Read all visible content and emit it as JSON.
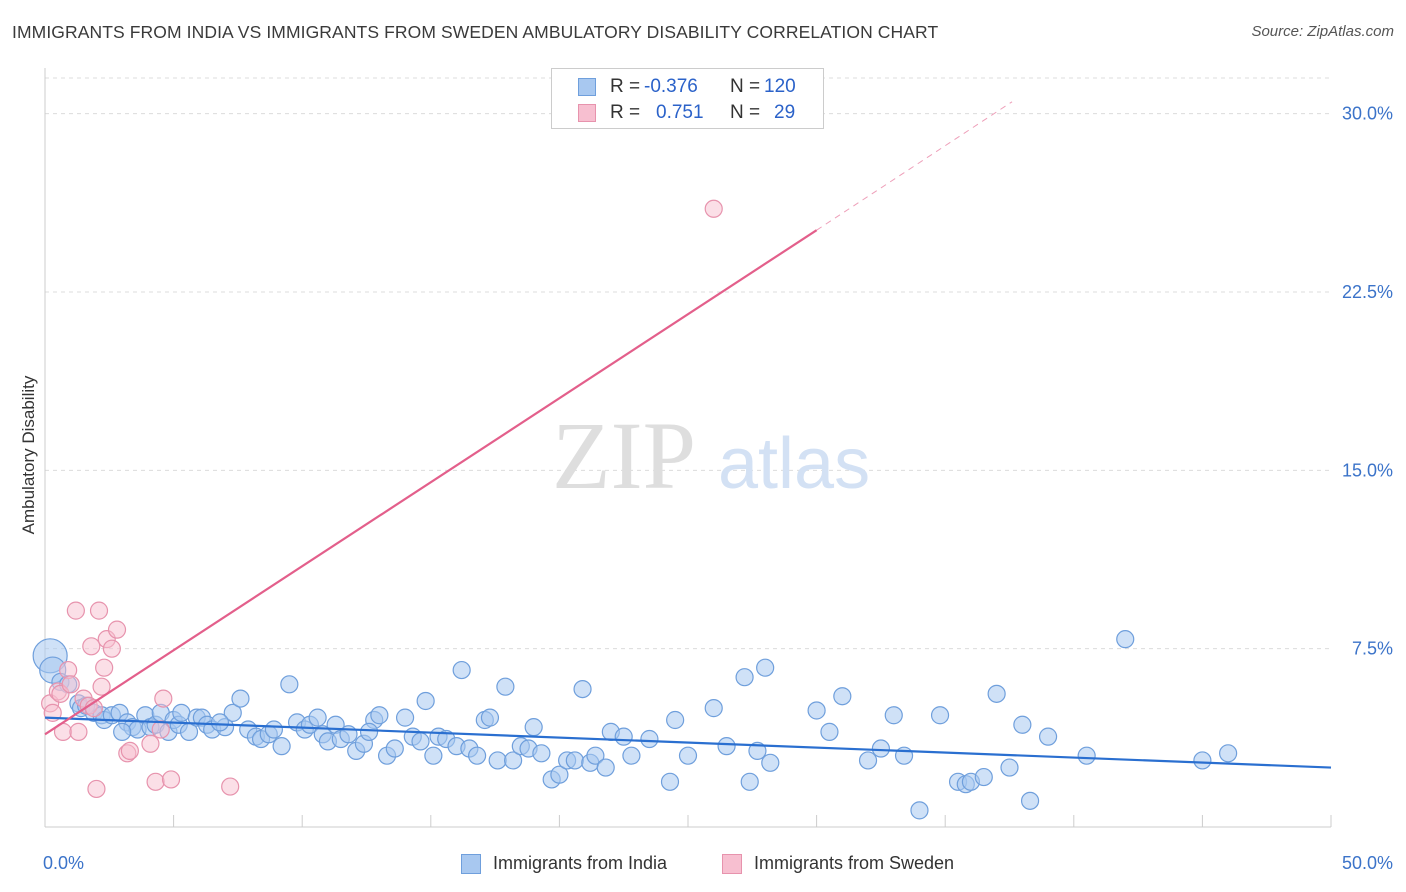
{
  "title": "IMMIGRANTS FROM INDIA VS IMMIGRANTS FROM SWEDEN AMBULATORY DISABILITY CORRELATION CHART",
  "source": "Source: ZipAtlas.com",
  "watermark": {
    "zip": "ZIP",
    "atlas": "atlas"
  },
  "stats": [
    {
      "r_label": "R =",
      "r_value": "-0.376",
      "n_label": "N =",
      "n_value": "120",
      "color": "#a8c8f0",
      "border": "#6f9fdc"
    },
    {
      "r_label": "R =",
      "r_value": "0.751",
      "n_label": "N =",
      "n_value": "29",
      "color": "#f7bfd0",
      "border": "#e793ad"
    }
  ],
  "legend": [
    {
      "label": "Immigrants from India",
      "color": "#a8c8f0",
      "border": "#6f9fdc"
    },
    {
      "label": "Immigrants from Sweden",
      "color": "#f7bfd0",
      "border": "#e793ad"
    }
  ],
  "chart_data": {
    "type": "scatter",
    "title": "IMMIGRANTS FROM INDIA VS IMMIGRANTS FROM SWEDEN AMBULATORY DISABILITY CORRELATION CHART",
    "xlabel": "",
    "ylabel": "Ambulatory Disability",
    "xlim": [
      0,
      50
    ],
    "ylim": [
      0,
      31.5
    ],
    "x_tick_labels": [
      "0.0%",
      "50.0%"
    ],
    "y_ticks": [
      7.5,
      15.0,
      22.5,
      30.0
    ],
    "y_tick_labels": [
      "7.5%",
      "15.0%",
      "22.5%",
      "30.0%"
    ],
    "colors": {
      "india": "#6f9fdc",
      "india_fill": "#a8c8f0",
      "india_line": "#2a6fd0",
      "sweden": "#e793ad",
      "sweden_fill": "#f7bfd0",
      "sweden_line": "#e35f8b",
      "tick_label": "#3b73c9",
      "grid": "#dcdcdc"
    },
    "series": [
      {
        "name": "Immigrants from India",
        "trend": {
          "x0": 0,
          "y0": 4.6,
          "x1": 50,
          "y1": 2.5
        },
        "points": [
          [
            0.2,
            7.2
          ],
          [
            0.3,
            6.6
          ],
          [
            0.6,
            6.1
          ],
          [
            0.9,
            6.0
          ],
          [
            1.3,
            5.2
          ],
          [
            1.4,
            5.0
          ],
          [
            1.6,
            5.1
          ],
          [
            1.9,
            4.8
          ],
          [
            2.2,
            4.7
          ],
          [
            2.3,
            4.5
          ],
          [
            2.6,
            4.7
          ],
          [
            2.9,
            4.8
          ],
          [
            3.2,
            4.4
          ],
          [
            3.4,
            4.2
          ],
          [
            3.6,
            4.1
          ],
          [
            3.9,
            4.7
          ],
          [
            4.1,
            4.2
          ],
          [
            4.3,
            4.3
          ],
          [
            4.5,
            4.8
          ],
          [
            4.8,
            4.0
          ],
          [
            5.0,
            4.5
          ],
          [
            5.2,
            4.3
          ],
          [
            5.3,
            4.8
          ],
          [
            5.6,
            4.0
          ],
          [
            5.9,
            4.6
          ],
          [
            6.1,
            4.6
          ],
          [
            6.3,
            4.3
          ],
          [
            6.5,
            4.1
          ],
          [
            7.0,
            4.2
          ],
          [
            7.3,
            4.8
          ],
          [
            7.6,
            5.4
          ],
          [
            7.9,
            4.1
          ],
          [
            8.2,
            3.8
          ],
          [
            8.4,
            3.7
          ],
          [
            8.7,
            3.9
          ],
          [
            8.9,
            4.1
          ],
          [
            9.2,
            3.4
          ],
          [
            9.5,
            6.0
          ],
          [
            9.8,
            4.4
          ],
          [
            10.1,
            4.1
          ],
          [
            10.3,
            4.3
          ],
          [
            10.6,
            4.6
          ],
          [
            10.8,
            3.9
          ],
          [
            11.0,
            3.6
          ],
          [
            11.3,
            4.3
          ],
          [
            11.5,
            3.7
          ],
          [
            11.8,
            3.9
          ],
          [
            12.1,
            3.2
          ],
          [
            12.4,
            3.5
          ],
          [
            12.8,
            4.5
          ],
          [
            13.0,
            4.7
          ],
          [
            13.3,
            3.0
          ],
          [
            13.6,
            3.3
          ],
          [
            14.0,
            4.6
          ],
          [
            14.3,
            3.8
          ],
          [
            14.6,
            3.6
          ],
          [
            14.8,
            5.3
          ],
          [
            15.1,
            3.0
          ],
          [
            15.3,
            3.8
          ],
          [
            15.6,
            3.7
          ],
          [
            16.0,
            3.4
          ],
          [
            16.2,
            6.6
          ],
          [
            16.5,
            3.3
          ],
          [
            16.8,
            3.0
          ],
          [
            17.1,
            4.5
          ],
          [
            17.3,
            4.6
          ],
          [
            17.6,
            2.8
          ],
          [
            17.9,
            5.9
          ],
          [
            18.2,
            2.8
          ],
          [
            18.5,
            3.4
          ],
          [
            18.8,
            3.3
          ],
          [
            19.0,
            4.2
          ],
          [
            19.3,
            3.1
          ],
          [
            19.7,
            2.0
          ],
          [
            20.0,
            2.2
          ],
          [
            20.3,
            2.8
          ],
          [
            20.6,
            2.8
          ],
          [
            20.9,
            5.8
          ],
          [
            21.2,
            2.7
          ],
          [
            21.4,
            3.0
          ],
          [
            22.0,
            4.0
          ],
          [
            22.5,
            3.8
          ],
          [
            22.8,
            3.0
          ],
          [
            23.5,
            3.7
          ],
          [
            24.3,
            1.9
          ],
          [
            24.5,
            4.5
          ],
          [
            25.0,
            3.0
          ],
          [
            26.0,
            5.0
          ],
          [
            26.5,
            3.4
          ],
          [
            27.2,
            6.3
          ],
          [
            27.4,
            1.9
          ],
          [
            27.7,
            3.2
          ],
          [
            28.0,
            6.7
          ],
          [
            28.2,
            2.7
          ],
          [
            30.0,
            4.9
          ],
          [
            30.5,
            4.0
          ],
          [
            31.0,
            5.5
          ],
          [
            32.0,
            2.8
          ],
          [
            32.5,
            3.3
          ],
          [
            33.0,
            4.7
          ],
          [
            33.4,
            3.0
          ],
          [
            34.8,
            4.7
          ],
          [
            34.0,
            0.7
          ],
          [
            35.5,
            1.9
          ],
          [
            35.8,
            1.8
          ],
          [
            36.0,
            1.9
          ],
          [
            36.5,
            2.1
          ],
          [
            37.0,
            5.6
          ],
          [
            37.5,
            2.5
          ],
          [
            38.0,
            4.3
          ],
          [
            38.3,
            1.1
          ],
          [
            39.0,
            3.8
          ],
          [
            40.5,
            3.0
          ],
          [
            42.0,
            7.9
          ],
          [
            45.0,
            2.8
          ],
          [
            46.0,
            3.1
          ],
          [
            3.0,
            4.0
          ],
          [
            6.8,
            4.4
          ],
          [
            12.6,
            4.0
          ],
          [
            21.8,
            2.5
          ]
        ]
      },
      {
        "name": "Immigrants from Sweden",
        "trend": {
          "x0": 0,
          "y0": 3.9,
          "x1": 30.0,
          "y1": 25.1,
          "dash_to_x": 37.6,
          "dash_to_y": 30.5
        },
        "points": [
          [
            0.2,
            5.2
          ],
          [
            0.3,
            4.8
          ],
          [
            0.5,
            5.7
          ],
          [
            0.6,
            5.6
          ],
          [
            0.7,
            4.0
          ],
          [
            0.9,
            6.6
          ],
          [
            1.0,
            6.0
          ],
          [
            1.2,
            9.1
          ],
          [
            1.3,
            4.0
          ],
          [
            1.5,
            5.4
          ],
          [
            1.7,
            5.1
          ],
          [
            1.8,
            7.6
          ],
          [
            1.9,
            5.0
          ],
          [
            2.0,
            1.6
          ],
          [
            2.1,
            9.1
          ],
          [
            2.2,
            5.9
          ],
          [
            2.3,
            6.7
          ],
          [
            2.4,
            7.9
          ],
          [
            2.6,
            7.5
          ],
          [
            2.8,
            8.3
          ],
          [
            3.2,
            3.1
          ],
          [
            3.3,
            3.2
          ],
          [
            4.1,
            3.5
          ],
          [
            4.3,
            1.9
          ],
          [
            4.5,
            4.1
          ],
          [
            4.6,
            5.4
          ],
          [
            4.9,
            2.0
          ],
          [
            7.2,
            1.7
          ],
          [
            26.0,
            26.0
          ]
        ]
      }
    ]
  }
}
